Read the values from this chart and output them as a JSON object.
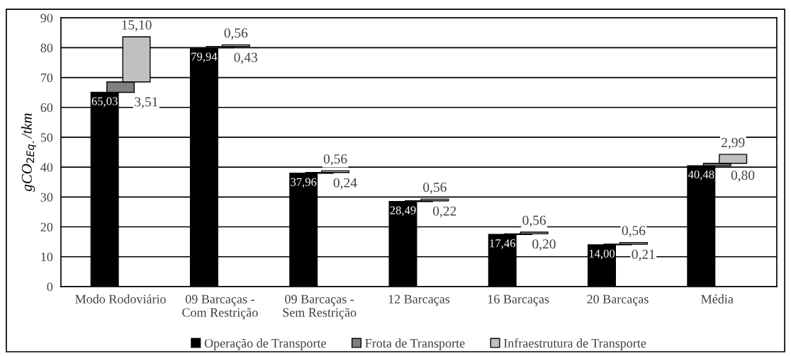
{
  "chart_data": {
    "type": "bar",
    "ylabel": "gCO$_{2Eq.}$/tkm",
    "categories": [
      "Modo Rodoviário",
      "09 Barcaças -\nCom Restrição",
      "09 Barcaças -\nSem Restrição",
      "12 Barcaças",
      "16 Barcaças",
      "20 Barcaças",
      "Média"
    ],
    "series": [
      {
        "name": "Operação de Transporte",
        "color": "#000000",
        "values": [
          65.03,
          79.94,
          37.96,
          28.49,
          17.46,
          14.0,
          40.48
        ],
        "value_labels": [
          "65,03",
          "79,94",
          "37,96",
          "28,49",
          "17,46",
          "14,00",
          "40,48"
        ]
      },
      {
        "name": "Frota de Transporte",
        "color": "#808080",
        "base": [
          65.03,
          79.94,
          37.96,
          28.49,
          17.46,
          14.0,
          40.48
        ],
        "values": [
          3.51,
          0.43,
          0.24,
          0.22,
          0.2,
          0.21,
          0.8
        ],
        "value_labels": [
          "3,51",
          "0,43",
          "0,24",
          "0,22",
          "0,20",
          "0,21",
          "0,80"
        ]
      },
      {
        "name": "Infraestrutura de Transporte",
        "color": "#c0c0c0",
        "base": [
          68.54,
          80.37,
          38.2,
          28.71,
          17.66,
          14.21,
          41.28
        ],
        "values": [
          15.1,
          0.56,
          0.56,
          0.56,
          0.56,
          0.56,
          2.99
        ],
        "value_labels": [
          "15,10",
          "0,56",
          "0,56",
          "0,56",
          "0,56",
          "0,56",
          "2,99"
        ]
      }
    ],
    "ylim": [
      0,
      90
    ],
    "yticks": [
      0,
      10,
      20,
      30,
      40,
      50,
      60,
      70,
      80,
      90
    ],
    "grid": "y",
    "legend": "bottom"
  }
}
